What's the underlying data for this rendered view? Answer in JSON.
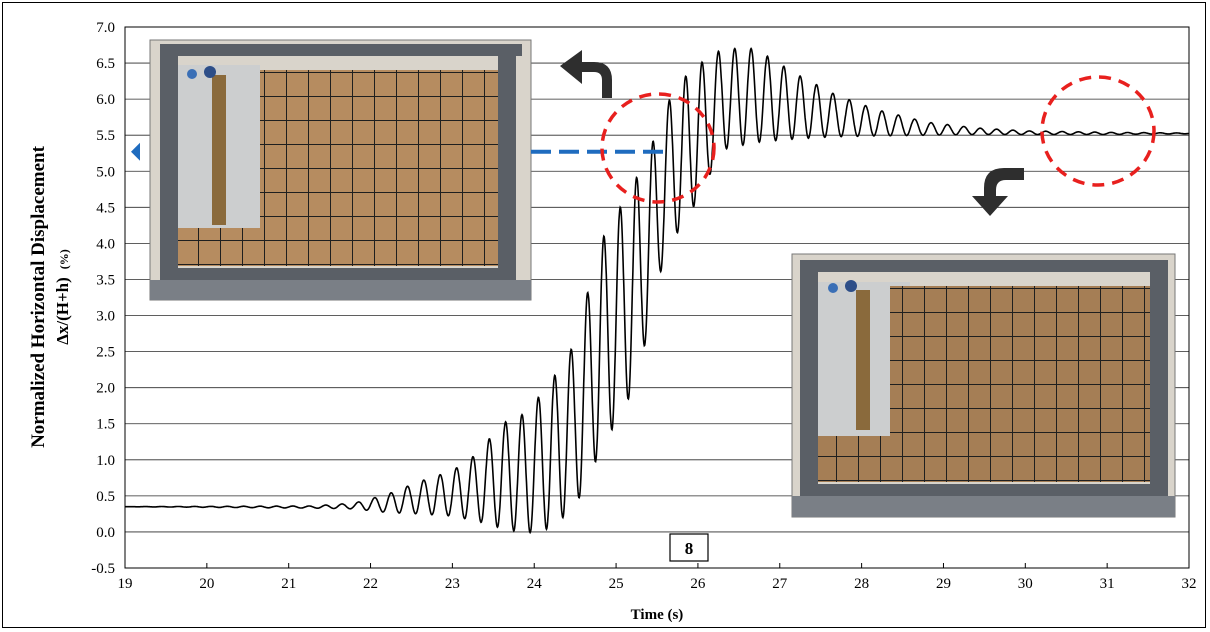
{
  "chart_data": {
    "type": "line",
    "xlabel": "Time (s)",
    "ylabel": "Normalized  Horizontal Displacement",
    "ylabel_formula": "Δx/(H+h)",
    "ylabel_unit": "(%)",
    "xlim": [
      19,
      32
    ],
    "ylim": [
      -0.5,
      7.0
    ],
    "x_ticks": [
      "19",
      "20",
      "21",
      "22",
      "23",
      "24",
      "25",
      "26",
      "27",
      "28",
      "29",
      "30",
      "31",
      "32"
    ],
    "y_ticks": [
      "-0.5",
      "0.0",
      "0.5",
      "1.0",
      "1.5",
      "2.0",
      "2.5",
      "3.0",
      "3.5",
      "4.0",
      "4.5",
      "5.0",
      "5.5",
      "6.0",
      "6.5",
      "7.0"
    ],
    "grid": "horizontal",
    "annotation_box": "8",
    "series": [
      {
        "color": "#000000",
        "envelope": [
          {
            "x": 19.0,
            "upper": 0.35,
            "lower": 0.35
          },
          {
            "x": 21.3,
            "upper": 0.36,
            "lower": 0.33
          },
          {
            "x": 21.8,
            "upper": 0.4,
            "lower": 0.32
          },
          {
            "x": 22.2,
            "upper": 0.52,
            "lower": 0.27
          },
          {
            "x": 22.6,
            "upper": 0.7,
            "lower": 0.25
          },
          {
            "x": 23.0,
            "upper": 0.85,
            "lower": 0.22
          },
          {
            "x": 23.3,
            "upper": 1.08,
            "lower": 0.15
          },
          {
            "x": 23.6,
            "upper": 1.5,
            "lower": 0.05
          },
          {
            "x": 23.9,
            "upper": 1.65,
            "lower": -0.02
          },
          {
            "x": 24.2,
            "upper": 2.08,
            "lower": 0.05
          },
          {
            "x": 24.5,
            "upper": 2.62,
            "lower": 0.35
          },
          {
            "x": 24.8,
            "upper": 4.0,
            "lower": 1.1
          },
          {
            "x": 25.2,
            "upper": 4.8,
            "lower": 1.95
          },
          {
            "x": 25.4,
            "upper": 5.25,
            "lower": 2.8
          },
          {
            "x": 25.6,
            "upper": 5.9,
            "lower": 3.9
          },
          {
            "x": 25.9,
            "upper": 6.4,
            "lower": 4.4
          },
          {
            "x": 26.3,
            "upper": 6.7,
            "lower": 5.3
          },
          {
            "x": 26.7,
            "upper": 6.7,
            "lower": 5.4
          },
          {
            "x": 27.2,
            "upper": 6.35,
            "lower": 5.45
          },
          {
            "x": 27.7,
            "upper": 6.05,
            "lower": 5.48
          },
          {
            "x": 28.2,
            "upper": 5.85,
            "lower": 5.49
          },
          {
            "x": 28.8,
            "upper": 5.68,
            "lower": 5.5
          },
          {
            "x": 29.4,
            "upper": 5.6,
            "lower": 5.51
          },
          {
            "x": 30.0,
            "upper": 5.56,
            "lower": 5.51
          },
          {
            "x": 31.0,
            "upper": 5.54,
            "lower": 5.51
          },
          {
            "x": 32.0,
            "upper": 5.53,
            "lower": 5.52
          }
        ]
      }
    ],
    "reference_level": 5.27
  },
  "colors": {
    "dash_circle": "#e8201e",
    "dash_line": "#1f6cbf",
    "arrow": "#2e2e2e",
    "photo_frame": "#4a4f58",
    "soil": "#b48a5e",
    "grid_lines": "#2a2a2a"
  },
  "icons": {
    "left_marker": "triangle-left-icon",
    "arrow_up": "curved-arrow-left-icon",
    "arrow_down": "curved-arrow-down-icon"
  }
}
